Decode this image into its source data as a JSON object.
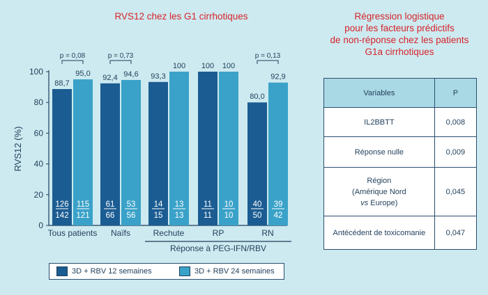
{
  "chart_title": "RVS12 chez les G1 cirrhotiques",
  "right_title_lines": [
    "Régression logistique",
    "pour les facteurs prédictifs",
    "de non-réponse chez les patients",
    "G1a cirrhotiques"
  ],
  "colors": {
    "title": "#d7232a",
    "series_12": "#1b5c92",
    "series_24": "#3aa2c8",
    "axis": "#1f3e5a",
    "background": "#cdeaf0"
  },
  "chart_data": {
    "type": "bar",
    "ylabel": "RVS12 (%)",
    "ylim": [
      0,
      100
    ],
    "yticks": [
      0,
      20,
      40,
      60,
      80,
      100
    ],
    "categories": [
      "Tous patients",
      "Naïfs",
      "Rechute",
      "RP",
      "RN"
    ],
    "series": [
      {
        "name": "3D + RBV 12 semaines",
        "values": [
          88.7,
          92.4,
          93.3,
          100,
          80.0
        ],
        "value_labels": [
          "88,7",
          "92,4",
          "93,3",
          "100",
          "80,0"
        ],
        "numerators": [
          "126",
          "61",
          "14",
          "11",
          "40"
        ],
        "denominators": [
          "142",
          "66",
          "15",
          "11",
          "50"
        ]
      },
      {
        "name": "3D + RBV 24 semaines",
        "values": [
          95.0,
          94.6,
          100,
          100,
          92.9
        ],
        "value_labels": [
          "95,0",
          "94,6",
          "100",
          "100",
          "92,9"
        ],
        "numerators": [
          "115",
          "53",
          "13",
          "10",
          "39"
        ],
        "denominators": [
          "121",
          "56",
          "13",
          "10",
          "42"
        ]
      }
    ],
    "pvalues": [
      {
        "category_index": 0,
        "label": "p = 0,08"
      },
      {
        "category_index": 1,
        "label": "p = 0,73"
      },
      {
        "category_index": 4,
        "label": "p = 0,13"
      }
    ],
    "group_bracket": {
      "from_category": 2,
      "to_category": 4,
      "label": "Réponse à PEG-IFN/RBV"
    },
    "legend_position": "bottom-left"
  },
  "table": {
    "headers": [
      "Variables",
      "P"
    ],
    "rows": [
      {
        "variable_lines": [
          "IL2BBTT"
        ],
        "p": "0,008"
      },
      {
        "variable_lines": [
          "Réponse nulle"
        ],
        "p": "0,009"
      },
      {
        "variable_lines": [
          "Région",
          "(Amérique Nord",
          "vs Europe)"
        ],
        "p": "0,045"
      },
      {
        "variable_lines": [
          "Antécédent de toxicomanie"
        ],
        "p": "0,047"
      }
    ]
  }
}
